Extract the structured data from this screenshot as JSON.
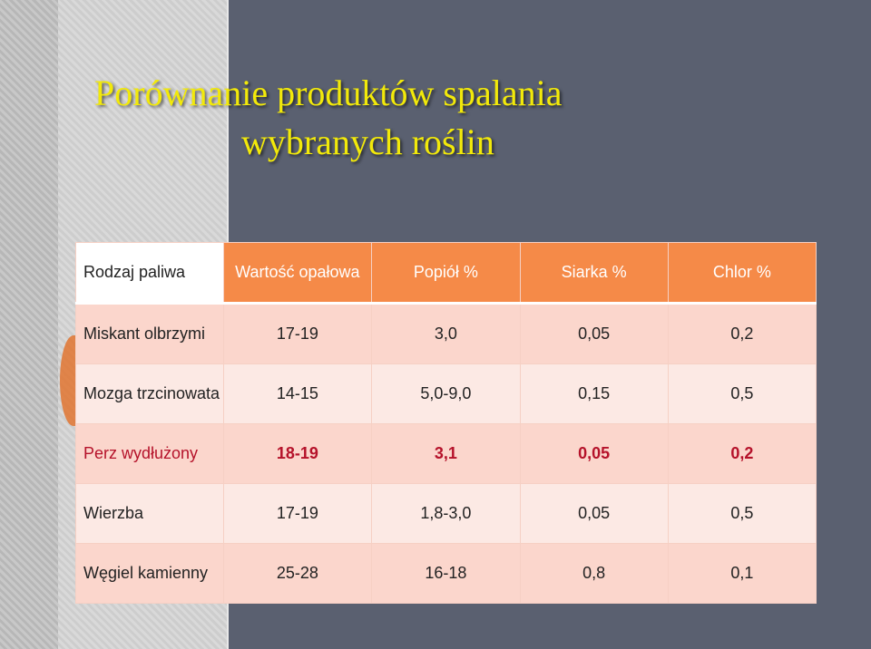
{
  "title": {
    "line1": "Porównanie produktów spalania",
    "line2": "wybranych roślin"
  },
  "colors": {
    "title": "#f2e90a",
    "header_bg": "#f58a48",
    "row_dark": "#fbd6cc",
    "row_light": "#fce9e4",
    "highlight_text": "#b5122a",
    "background": "#5a6070"
  },
  "table": {
    "headers": [
      "Rodzaj paliwa",
      "Wartość opałowa",
      "Popiół %",
      "Siarka %",
      "Chlor %"
    ],
    "rows": [
      {
        "name": "Miskant olbrzymi",
        "values": [
          "17-19",
          "3,0",
          "0,05",
          "0,2"
        ]
      },
      {
        "name": "Mozga trzcinowata",
        "values": [
          "14-15",
          "5,0-9,0",
          "0,15",
          "0,5"
        ]
      },
      {
        "name": "Perz wydłużony",
        "values": [
          "18-19",
          "3,1",
          "0,05",
          "0,2"
        ]
      },
      {
        "name": "Wierzba",
        "values": [
          "17-19",
          "1,8-3,0",
          "0,05",
          "0,5"
        ]
      },
      {
        "name": "Węgiel kamienny",
        "values": [
          "25-28",
          "16-18",
          "0,8",
          "0,1"
        ]
      }
    ]
  }
}
